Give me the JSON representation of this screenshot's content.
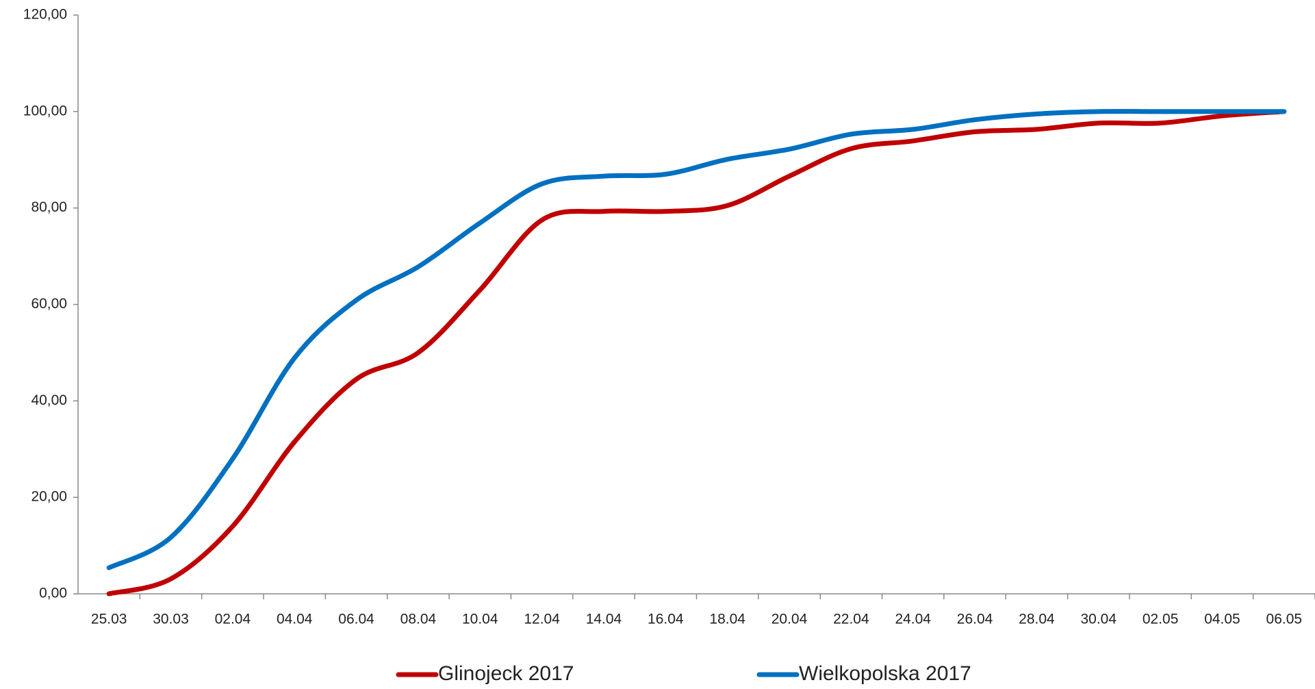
{
  "chart_data": {
    "type": "line",
    "categories": [
      "25.03",
      "30.03",
      "02.04",
      "04.04",
      "06.04",
      "08.04",
      "10.04",
      "12.04",
      "14.04",
      "16.04",
      "18.04",
      "20.04",
      "22.04",
      "24.04",
      "26.04",
      "28.04",
      "30.04",
      "02.05",
      "04.05",
      "06.05"
    ],
    "series": [
      {
        "name": "Glinojeck 2017",
        "color": "#c00000",
        "values": [
          0,
          3.1,
          14,
          31.5,
          44.5,
          50,
          63,
          77.5,
          79.3,
          79.3,
          80.5,
          86.6,
          92.3,
          93.9,
          95.8,
          96.3,
          97.6,
          97.6,
          99.1,
          100
        ]
      },
      {
        "name": "Wielkopolska 2017",
        "color": "#0070c0",
        "values": [
          5.4,
          11.7,
          28,
          48.9,
          60.9,
          67.8,
          76.9,
          85,
          86.6,
          87,
          90.1,
          92.2,
          95.3,
          96.3,
          98.3,
          99.5,
          100,
          100,
          100,
          100
        ]
      }
    ],
    "ylim": [
      0,
      120
    ],
    "yticks": [
      {
        "value": 0,
        "label": "0,00"
      },
      {
        "value": 20,
        "label": "20,00"
      },
      {
        "value": 40,
        "label": "40,00"
      },
      {
        "value": 60,
        "label": "60,00"
      },
      {
        "value": 80,
        "label": "80,00"
      },
      {
        "value": 100,
        "label": "100,00"
      },
      {
        "value": 120,
        "label": "120,00"
      }
    ],
    "grid": false,
    "smooth": true,
    "legend": "bottom"
  }
}
